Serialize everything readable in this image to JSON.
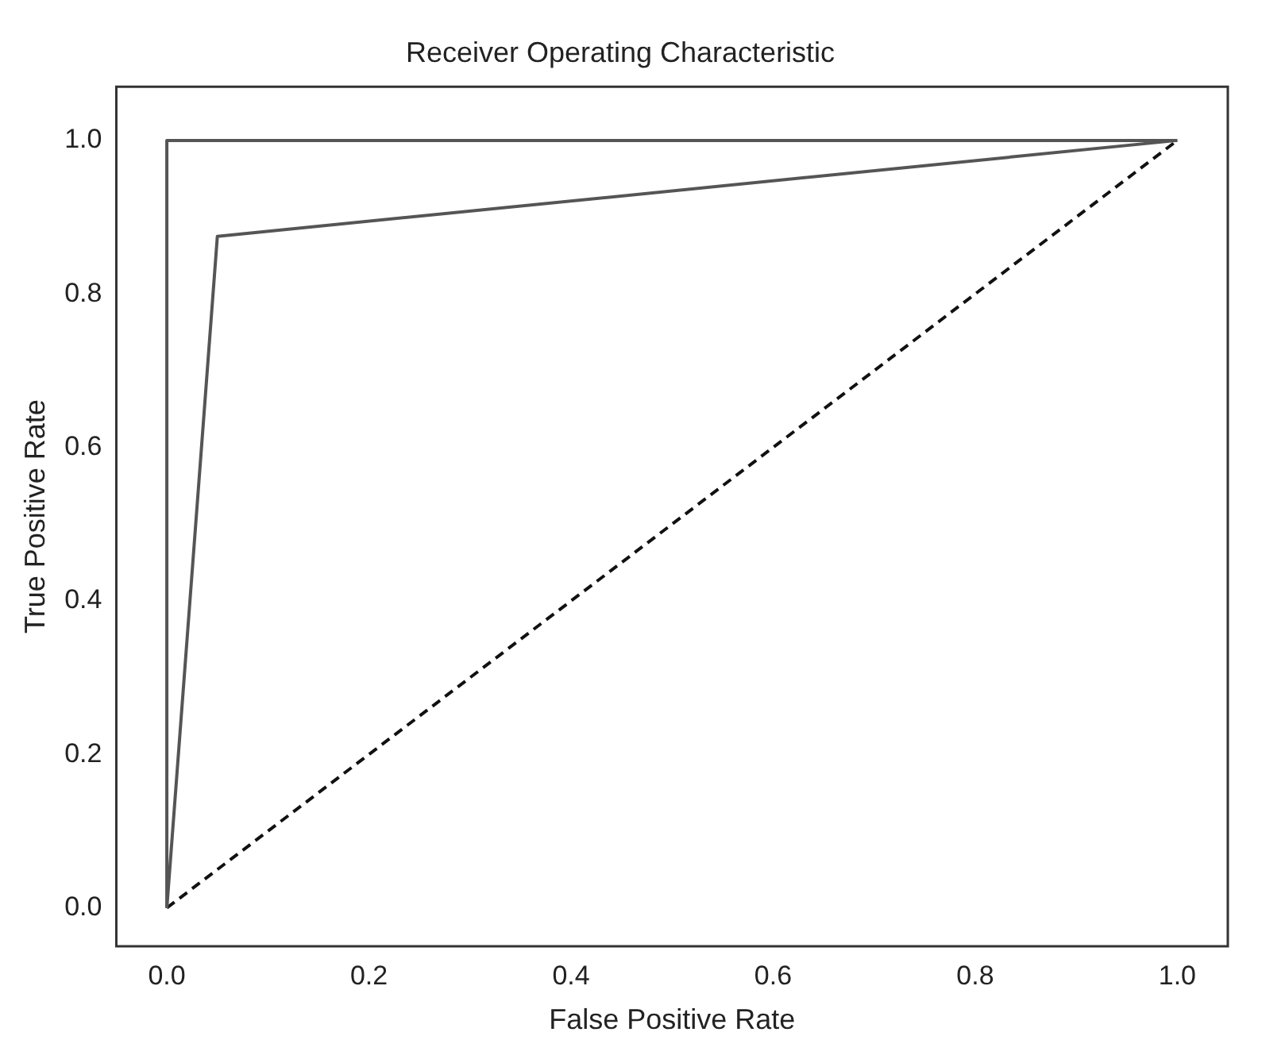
{
  "chart_data": {
    "type": "line",
    "title": "Receiver Operating Characteristic",
    "xlabel": "False Positive Rate",
    "ylabel": "True Positive Rate",
    "series": [
      {
        "color": "#555555",
        "x": [
          0,
          0,
          1
        ],
        "values": [
          0,
          1,
          1
        ],
        "line_style": "solid"
      },
      {
        "color": "#555555",
        "x": [
          0,
          0.05,
          1
        ],
        "values": [
          0,
          0.875,
          1
        ],
        "line_style": "solid"
      },
      {
        "color": "#111111",
        "x": [
          0,
          1
        ],
        "values": [
          0,
          1
        ],
        "line_style": "dashed"
      }
    ],
    "xlim": [
      -0.05,
      1.05
    ],
    "ylim": [
      -0.05,
      1.07
    ],
    "xticks": [
      {
        "value": 0,
        "label": "0.0"
      },
      {
        "value": 0.2,
        "label": "0.2"
      },
      {
        "value": 0.4,
        "label": "0.4"
      },
      {
        "value": 0.6,
        "label": "0.6"
      },
      {
        "value": 0.8,
        "label": "0.8"
      },
      {
        "value": 1,
        "label": "1.0"
      }
    ],
    "yticks": [
      {
        "value": 0,
        "label": "0.0"
      },
      {
        "value": 0.2,
        "label": "0.2"
      },
      {
        "value": 0.4,
        "label": "0.4"
      },
      {
        "value": 0.6,
        "label": "0.6"
      },
      {
        "value": 0.8,
        "label": "0.8"
      },
      {
        "value": 1,
        "label": "1.0"
      }
    ],
    "grid": false,
    "legend": false,
    "marker": "none"
  }
}
